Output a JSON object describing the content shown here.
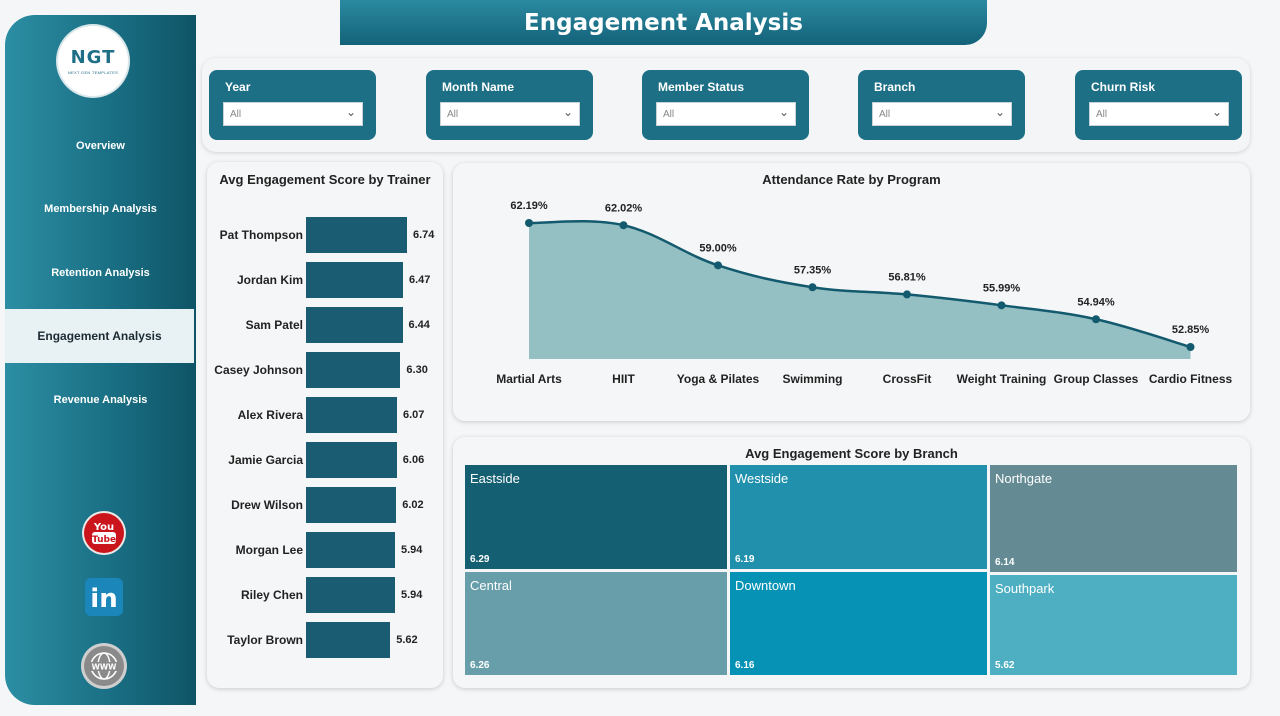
{
  "header": {
    "title": "Engagement Analysis"
  },
  "logo": {
    "text": "NGT",
    "subtitle": "NEXT GEN TEMPLATES"
  },
  "nav": [
    {
      "label": "Overview",
      "active": false
    },
    {
      "label": "Membership Analysis",
      "active": false
    },
    {
      "label": "Retention Analysis",
      "active": false
    },
    {
      "label": "Engagement Analysis",
      "active": true
    },
    {
      "label": "Revenue Analysis",
      "active": false
    }
  ],
  "social": [
    {
      "icon": "youtube-icon",
      "text": "You Tube"
    },
    {
      "icon": "linkedin-icon",
      "text": "in"
    },
    {
      "icon": "www-icon",
      "text": "WWW"
    }
  ],
  "filters": [
    {
      "label": "Year",
      "value": "All"
    },
    {
      "label": "Month Name",
      "value": "All"
    },
    {
      "label": "Member Status",
      "value": "All"
    },
    {
      "label": "Branch",
      "value": "All"
    },
    {
      "label": "Churn Risk",
      "value": "All"
    }
  ],
  "colors": {
    "accent": "#1d6f86",
    "bar": "#1a5c72",
    "area": "#95c0c3",
    "line": "#135a6e"
  },
  "chart_data": [
    {
      "type": "bar",
      "orientation": "horizontal",
      "title": "Avg Engagement Score by Trainer",
      "categories": [
        "Pat Thompson",
        "Jordan Kim",
        "Sam Patel",
        "Casey Johnson",
        "Alex Rivera",
        "Jamie Garcia",
        "Drew Wilson",
        "Morgan Lee",
        "Riley Chen",
        "Taylor Brown"
      ],
      "values": [
        6.74,
        6.47,
        6.44,
        6.3,
        6.07,
        6.06,
        6.02,
        5.94,
        5.94,
        5.62
      ],
      "labels": [
        "6.74",
        "6.47",
        "6.44",
        "6.30",
        "6.07",
        "6.06",
        "6.02",
        "5.94",
        "5.94",
        "5.62"
      ]
    },
    {
      "type": "area",
      "title": "Attendance Rate by Program",
      "categories": [
        "Martial Arts",
        "HIIT",
        "Yoga & Pilates",
        "Swimming",
        "CrossFit",
        "Weight Training",
        "Group Classes",
        "Cardio Fitness"
      ],
      "values": [
        62.19,
        62.02,
        59.0,
        57.35,
        56.81,
        55.99,
        54.94,
        52.85
      ],
      "labels": [
        "62.19%",
        "62.02%",
        "59.00%",
        "57.35%",
        "56.81%",
        "55.99%",
        "54.94%",
        "52.85%"
      ]
    },
    {
      "type": "treemap",
      "title": "Avg Engagement Score by Branch",
      "items": [
        {
          "name": "Eastside",
          "value": 6.29,
          "label": "6.29",
          "color": "#155f72"
        },
        {
          "name": "Westside",
          "value": 6.19,
          "label": "6.19",
          "color": "#2090ad"
        },
        {
          "name": "Northgate",
          "value": 6.14,
          "label": "6.14",
          "color": "#648b94"
        },
        {
          "name": "Central",
          "value": 6.26,
          "label": "6.26",
          "color": "#689ea9"
        },
        {
          "name": "Downtown",
          "value": 6.16,
          "label": "6.16",
          "color": "#0592b4"
        },
        {
          "name": "Southpark",
          "value": 5.62,
          "label": "5.62",
          "color": "#4eafc3"
        }
      ]
    }
  ]
}
